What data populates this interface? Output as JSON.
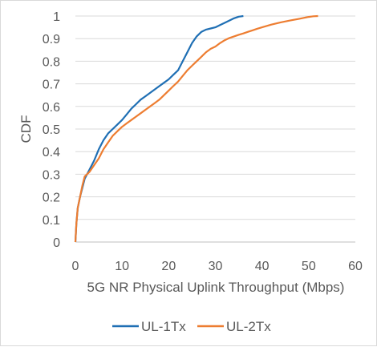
{
  "chart_data": {
    "type": "line",
    "title": "",
    "xlabel": "5G NR Physical Uplink Throughput (Mbps)",
    "ylabel": "CDF",
    "xlim": [
      0,
      60
    ],
    "ylim": [
      0,
      1
    ],
    "x_ticks": [
      "0",
      "10",
      "20",
      "30",
      "40",
      "50",
      "60"
    ],
    "y_ticks": [
      "0",
      "0.1",
      "0.2",
      "0.3",
      "0.4",
      "0.5",
      "0.6",
      "0.7",
      "0.8",
      "0.9",
      "1"
    ],
    "grid": "horizontal",
    "legend_position": "bottom",
    "series": [
      {
        "name": "UL-1Tx",
        "color": "#1f6fb4",
        "points": [
          [
            0,
            0
          ],
          [
            0.2,
            0.08
          ],
          [
            0.5,
            0.15
          ],
          [
            1,
            0.2
          ],
          [
            1.5,
            0.24
          ],
          [
            2,
            0.28
          ],
          [
            3,
            0.32
          ],
          [
            4,
            0.36
          ],
          [
            5,
            0.41
          ],
          [
            6,
            0.45
          ],
          [
            7,
            0.48
          ],
          [
            8,
            0.5
          ],
          [
            9,
            0.52
          ],
          [
            10,
            0.54
          ],
          [
            11,
            0.565
          ],
          [
            12,
            0.59
          ],
          [
            13,
            0.61
          ],
          [
            14,
            0.63
          ],
          [
            15,
            0.645
          ],
          [
            16,
            0.66
          ],
          [
            17,
            0.675
          ],
          [
            18,
            0.69
          ],
          [
            19,
            0.705
          ],
          [
            20,
            0.72
          ],
          [
            21,
            0.74
          ],
          [
            22,
            0.76
          ],
          [
            23,
            0.8
          ],
          [
            24,
            0.84
          ],
          [
            25,
            0.88
          ],
          [
            26,
            0.91
          ],
          [
            27,
            0.93
          ],
          [
            28,
            0.94
          ],
          [
            29,
            0.945
          ],
          [
            30,
            0.95
          ],
          [
            31,
            0.96
          ],
          [
            32,
            0.97
          ],
          [
            33,
            0.98
          ],
          [
            34,
            0.99
          ],
          [
            35,
            0.997
          ],
          [
            36,
            1
          ]
        ]
      },
      {
        "name": "UL-2Tx",
        "color": "#ed7d31",
        "points": [
          [
            0,
            0
          ],
          [
            0.2,
            0.08
          ],
          [
            0.5,
            0.15
          ],
          [
            1,
            0.2
          ],
          [
            1.5,
            0.25
          ],
          [
            2,
            0.29
          ],
          [
            3,
            0.31
          ],
          [
            4,
            0.34
          ],
          [
            5,
            0.37
          ],
          [
            6,
            0.41
          ],
          [
            7,
            0.44
          ],
          [
            8,
            0.47
          ],
          [
            9,
            0.49
          ],
          [
            10,
            0.51
          ],
          [
            11,
            0.525
          ],
          [
            12,
            0.54
          ],
          [
            13,
            0.555
          ],
          [
            14,
            0.57
          ],
          [
            15,
            0.585
          ],
          [
            16,
            0.6
          ],
          [
            17,
            0.615
          ],
          [
            18,
            0.63
          ],
          [
            19,
            0.65
          ],
          [
            20,
            0.67
          ],
          [
            21,
            0.69
          ],
          [
            22,
            0.71
          ],
          [
            23,
            0.735
          ],
          [
            24,
            0.76
          ],
          [
            25,
            0.78
          ],
          [
            26,
            0.8
          ],
          [
            27,
            0.82
          ],
          [
            28,
            0.84
          ],
          [
            29,
            0.855
          ],
          [
            30,
            0.865
          ],
          [
            31,
            0.88
          ],
          [
            32,
            0.893
          ],
          [
            33,
            0.903
          ],
          [
            34,
            0.91
          ],
          [
            35,
            0.917
          ],
          [
            36,
            0.923
          ],
          [
            37,
            0.93
          ],
          [
            38,
            0.937
          ],
          [
            39,
            0.944
          ],
          [
            40,
            0.95
          ],
          [
            42,
            0.962
          ],
          [
            44,
            0.972
          ],
          [
            46,
            0.98
          ],
          [
            48,
            0.988
          ],
          [
            50,
            0.996
          ],
          [
            51,
            0.999
          ],
          [
            52,
            1
          ]
        ]
      }
    ]
  }
}
